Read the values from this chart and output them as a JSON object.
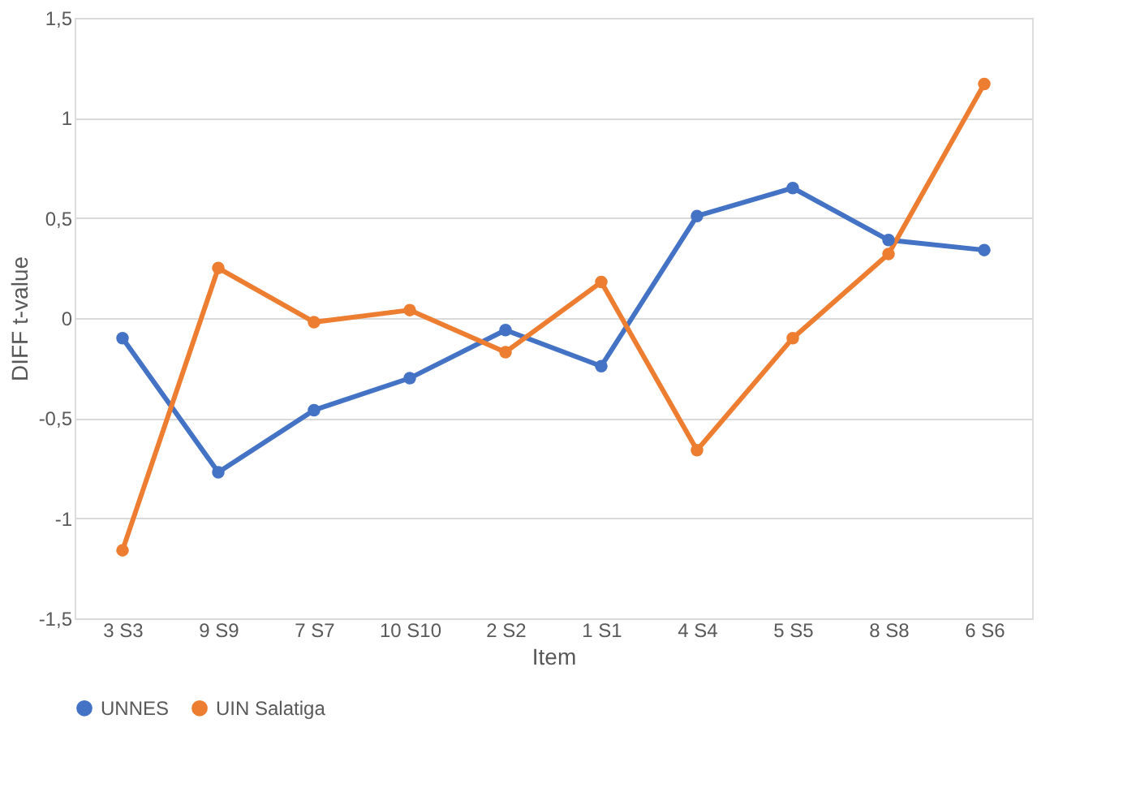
{
  "chart_data": {
    "type": "line",
    "xlabel": "Item",
    "ylabel": "DIFF t-value",
    "categories": [
      "3 S3",
      "9 S9",
      "7 S7",
      "10 S10",
      "2 S2",
      "1 S1",
      "4 S4",
      "5 S5",
      "8 S8",
      "6 S6"
    ],
    "series": [
      {
        "name": "UNNES",
        "color": "#4472c4",
        "values": [
          -0.1,
          -0.77,
          -0.46,
          -0.3,
          -0.06,
          -0.24,
          0.51,
          0.65,
          0.39,
          0.34
        ]
      },
      {
        "name": "UIN Salatiga",
        "color": "#ed7d31",
        "values": [
          -1.16,
          0.25,
          -0.02,
          0.04,
          -0.17,
          0.18,
          -0.66,
          -0.1,
          0.32,
          1.17
        ]
      }
    ],
    "ylim": [
      -1.5,
      1.5
    ],
    "yticks": [
      {
        "value": -1.5,
        "label": "-1,5"
      },
      -1,
      {
        "value": -0.5,
        "label": "-0,5"
      },
      0,
      {
        "value": 0.5,
        "label": "0,5"
      },
      1,
      {
        "value": 1.5,
        "label": "1,5"
      }
    ],
    "grid": "y",
    "legend": "bottom",
    "marker": "circle",
    "line_style": "solid"
  }
}
